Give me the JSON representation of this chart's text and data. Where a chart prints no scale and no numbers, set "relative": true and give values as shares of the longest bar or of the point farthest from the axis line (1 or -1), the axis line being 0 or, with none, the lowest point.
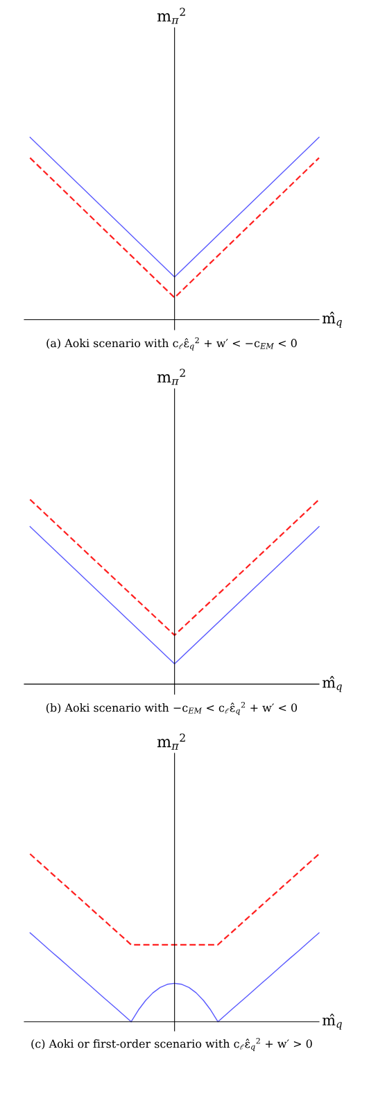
{
  "chart_data": [
    {
      "type": "line",
      "relative": true,
      "title": "(a) Aoki scenario with c$_{ℓ}$ε̂$_{q}$$^{2}$ + w′ < −c$_{EM}$ < 0",
      "xlabel": "m̂$_{q}$",
      "ylabel": "m$_{π}$$^{2}$",
      "categories": [
        null,
        null,
        null
      ],
      "series": [
        {
          "color": "#5a5aff",
          "line_style": "solid",
          "values": [
            1,
            0.234,
            1
          ]
        },
        {
          "color": "#ff2020",
          "line_style": "dashed",
          "values": [
            0.887,
            0.121,
            0.887
          ]
        }
      ]
    },
    {
      "type": "line",
      "relative": true,
      "title": "(b) Aoki scenario with −c$_{EM}$ < c$_{ℓ}$ε̂$_{q}$$^{2}$ + w′ < 0",
      "xlabel": "m̂$_{q}$",
      "ylabel": "m$_{π}$$^{2}$",
      "categories": [
        null,
        null,
        null
      ],
      "series": [
        {
          "color": "#5a5aff",
          "line_style": "solid",
          "values": [
            0.853,
            0.11,
            0.853
          ]
        },
        {
          "color": "#ff2020",
          "line_style": "dashed",
          "values": [
            1,
            0.265,
            1
          ]
        }
      ]
    },
    {
      "type": "line",
      "relative": true,
      "title": "(c) Aoki or first-order scenario with c$_{ℓ}$ε̂$_{q}$$^{2}$ + w′ > 0",
      "xlabel": "m̂$_{q}$",
      "ylabel": "m$_{π}$$^{2}$",
      "categories": [
        null,
        null,
        null,
        null,
        null,
        null,
        null,
        null,
        null,
        null,
        null,
        null,
        null,
        null,
        null,
        null,
        null,
        null,
        null,
        null,
        null,
        null,
        null,
        null,
        null,
        null,
        null,
        null,
        null,
        null,
        null,
        null,
        null,
        null,
        null,
        null,
        null,
        null,
        null,
        null,
        null
      ],
      "series": [
        {
          "color": "#5a5aff",
          "line_style": "solid",
          "values": [
            0.53,
            0.492,
            0.454,
            0.416,
            0.379,
            0.341,
            0.303,
            0.265,
            0.227,
            0.189,
            0.151,
            0.114,
            0.076,
            0.038,
            0,
            0.07,
            0.127,
            0.172,
            0.204,
            0.223,
            0.229,
            0.223,
            0.204,
            0.172,
            0.127,
            0.07,
            0,
            0.038,
            0.076,
            0.114,
            0.151,
            0.189,
            0.227,
            0.265,
            0.303,
            0.341,
            0.379,
            0.416,
            0.454,
            0.492,
            0.53
          ]
        },
        {
          "color": "#ff2020",
          "line_style": "dashed",
          "values": [
            1,
            0.961,
            0.923,
            0.884,
            0.845,
            0.807,
            0.768,
            0.73,
            0.691,
            0.652,
            0.614,
            0.575,
            0.536,
            0.498,
            0.459,
            0.459,
            0.459,
            0.459,
            0.459,
            0.459,
            0.459,
            0.459,
            0.459,
            0.459,
            0.459,
            0.459,
            0.459,
            0.498,
            0.536,
            0.575,
            0.614,
            0.652,
            0.691,
            0.73,
            0.768,
            0.807,
            0.845,
            0.884,
            0.923,
            0.961,
            1
          ]
        }
      ]
    }
  ]
}
